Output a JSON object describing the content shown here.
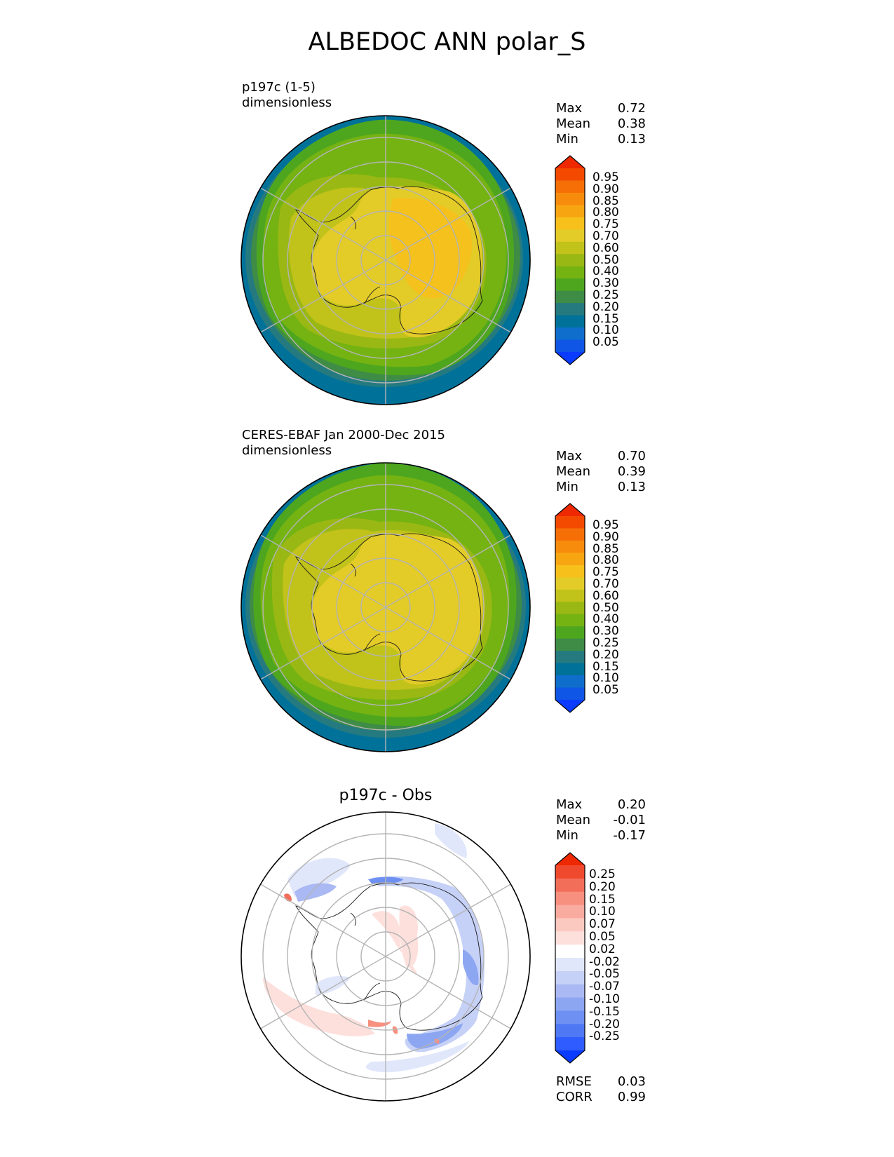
{
  "title": "ALBEDOC ANN polar_S",
  "panels": [
    {
      "id": "test",
      "title_line1": "p197c (1-5)",
      "title_line2": "dimensionless",
      "stats": [
        {
          "label": "Max",
          "value": "0.72"
        },
        {
          "label": "Mean",
          "value": "0.38"
        },
        {
          "label": "Min",
          "value": "0.13"
        }
      ],
      "colorbar_ticks": [
        "0.95",
        "0.90",
        "0.85",
        "0.80",
        "0.75",
        "0.70",
        "0.60",
        "0.50",
        "0.40",
        "0.30",
        "0.25",
        "0.20",
        "0.15",
        "0.10",
        "0.05"
      ]
    },
    {
      "id": "reference",
      "title_line1": "CERES-EBAF Jan 2000-Dec 2015",
      "title_line2": "dimensionless",
      "stats": [
        {
          "label": "Max",
          "value": "0.70"
        },
        {
          "label": "Mean",
          "value": "0.39"
        },
        {
          "label": "Min",
          "value": "0.13"
        }
      ],
      "colorbar_ticks": [
        "0.95",
        "0.90",
        "0.85",
        "0.80",
        "0.75",
        "0.70",
        "0.60",
        "0.50",
        "0.40",
        "0.30",
        "0.25",
        "0.20",
        "0.15",
        "0.10",
        "0.05"
      ]
    },
    {
      "id": "difference",
      "title": "p197c - Obs",
      "stats": [
        {
          "label": "Max",
          "value": "0.20"
        },
        {
          "label": "Mean",
          "value": "-0.01"
        },
        {
          "label": "Min",
          "value": "-0.17"
        }
      ],
      "colorbar_ticks": [
        "0.25",
        "0.20",
        "0.15",
        "0.10",
        "0.07",
        "0.05",
        "0.02",
        "-0.02",
        "-0.05",
        "-0.07",
        "-0.10",
        "-0.15",
        "-0.20",
        "-0.25"
      ],
      "metrics": [
        {
          "label": "RMSE",
          "value": "0.03"
        },
        {
          "label": "CORR",
          "value": "0.99"
        }
      ]
    }
  ],
  "colors": {
    "albedo_scale": [
      "#0a3cff",
      "#0f55e6",
      "#0f6ecc",
      "#00729a",
      "#257a80",
      "#3e8c46",
      "#4ea61e",
      "#74b312",
      "#9ab814",
      "#c1c21a",
      "#e3cb28",
      "#f8c01a",
      "#f7a612",
      "#f78c0c",
      "#f56f06",
      "#f34a00",
      "#ee2800"
    ],
    "diff_scale": [
      "#0a3cff",
      "#2e5cff",
      "#4f78f5",
      "#6e90f2",
      "#8ca6f2",
      "#aab9f3",
      "#c6d1f7",
      "#e1e7fb",
      "#ffffff",
      "#fde0dc",
      "#fcc9c1",
      "#f9aba0",
      "#f7907f",
      "#f36e59",
      "#f04a2e",
      "#ee2800"
    ],
    "ocean": "#00729a",
    "ice_sheet": "#e3cb28"
  }
}
